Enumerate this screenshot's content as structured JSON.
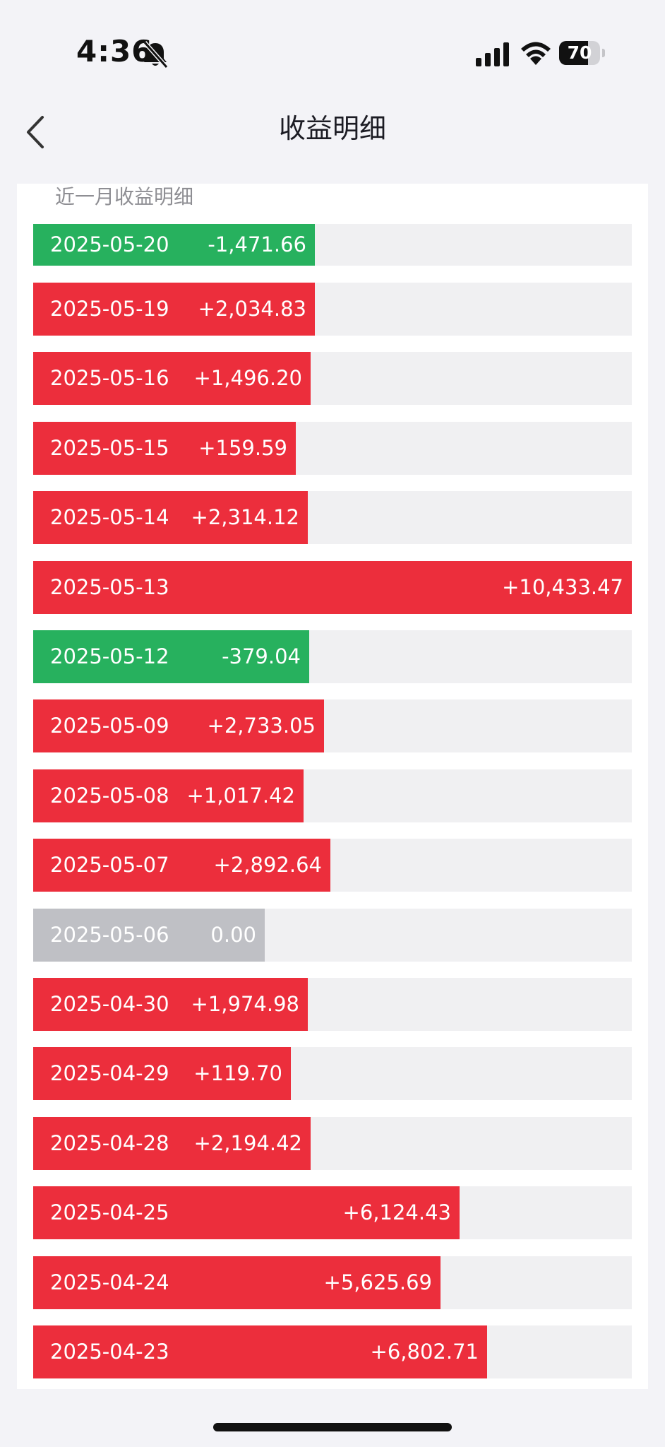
{
  "status_bar": {
    "time": "4:36",
    "battery": "70",
    "battery_level": 0.7,
    "icons": [
      "bell-slash-icon",
      "signal-icon",
      "wifi-icon",
      "battery-icon"
    ]
  },
  "nav": {
    "title": "收益明细",
    "back_icon": "chevron-left-icon"
  },
  "section": {
    "title": "近一月收益明细"
  },
  "colors": {
    "gain": "#ec2e3c",
    "loss": "#27b15e",
    "zero": "#bfc0c5",
    "track": "#f0f0f2"
  },
  "rows": [
    {
      "date": "2025-05-20",
      "value_text": "-1,471.66",
      "value": -1471.66,
      "fill": 0.47
    },
    {
      "date": "2025-05-19",
      "value_text": "+2,034.83",
      "value": 2034.83,
      "fill": 0.47
    },
    {
      "date": "2025-05-16",
      "value_text": "+1,496.20",
      "value": 1496.2,
      "fill": 0.464
    },
    {
      "date": "2025-05-15",
      "value_text": "+159.59",
      "value": 159.59,
      "fill": 0.439
    },
    {
      "date": "2025-05-14",
      "value_text": "+2,314.12",
      "value": 2314.12,
      "fill": 0.459
    },
    {
      "date": "2025-05-13",
      "value_text": "+10,433.47",
      "value": 10433.47,
      "fill": 1.0
    },
    {
      "date": "2025-05-12",
      "value_text": "-379.04",
      "value": -379.04,
      "fill": 0.461
    },
    {
      "date": "2025-05-09",
      "value_text": "+2,733.05",
      "value": 2733.05,
      "fill": 0.486
    },
    {
      "date": "2025-05-08",
      "value_text": "+1,017.42",
      "value": 1017.42,
      "fill": 0.452
    },
    {
      "date": "2025-05-07",
      "value_text": "+2,892.64",
      "value": 2892.64,
      "fill": 0.497
    },
    {
      "date": "2025-05-06",
      "value_text": "0.00",
      "value": 0.0,
      "fill": 0.387
    },
    {
      "date": "2025-04-30",
      "value_text": "+1,974.98",
      "value": 1974.98,
      "fill": 0.459
    },
    {
      "date": "2025-04-29",
      "value_text": "+119.70",
      "value": 119.7,
      "fill": 0.43
    },
    {
      "date": "2025-04-28",
      "value_text": "+2,194.42",
      "value": 2194.42,
      "fill": 0.464
    },
    {
      "date": "2025-04-25",
      "value_text": "+6,124.43",
      "value": 6124.43,
      "fill": 0.712
    },
    {
      "date": "2025-04-24",
      "value_text": "+5,625.69",
      "value": 5625.69,
      "fill": 0.68
    },
    {
      "date": "2025-04-23",
      "value_text": "+6,802.71",
      "value": 6802.71,
      "fill": 0.758
    }
  ]
}
